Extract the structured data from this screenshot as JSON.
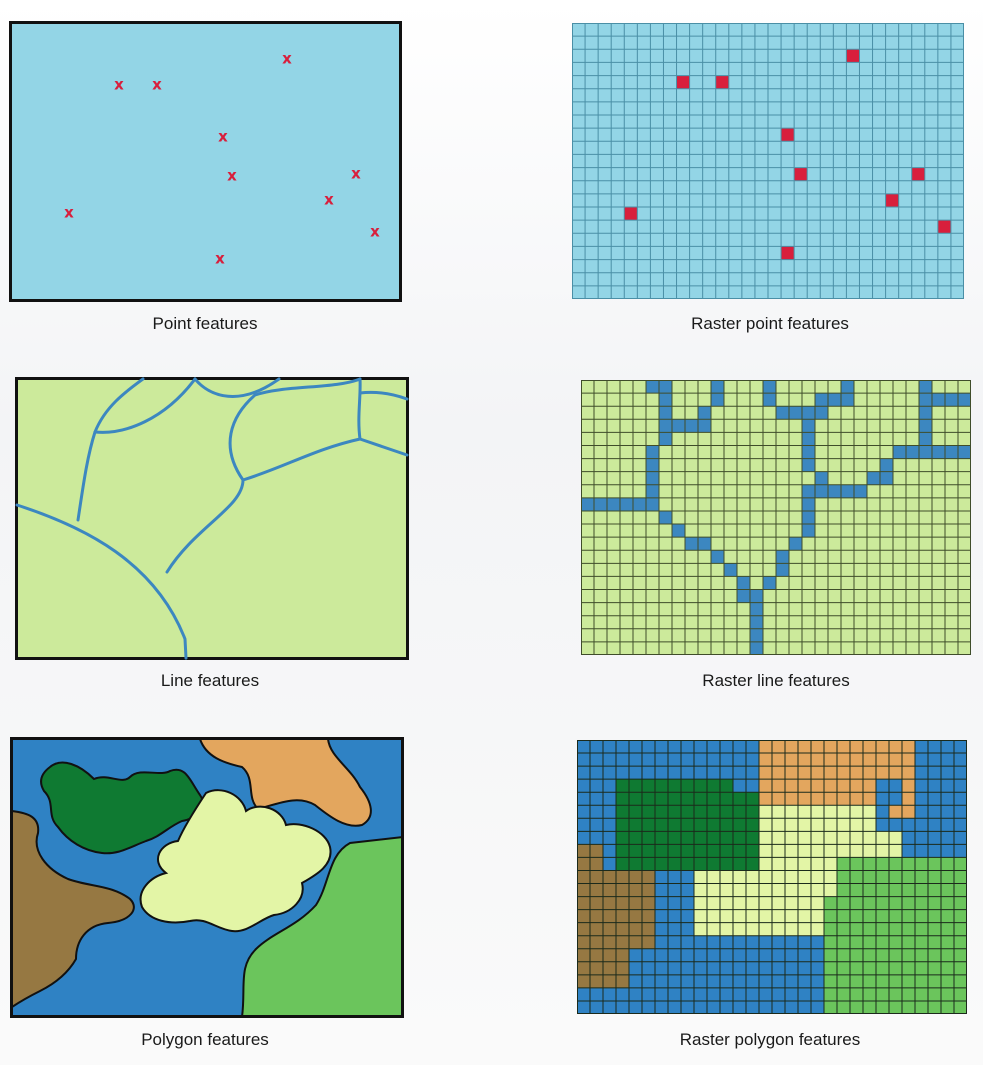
{
  "captions": {
    "point": "Point features",
    "raster_point": "Raster point features",
    "line": "Line features",
    "raster_line": "Raster line features",
    "polygon": "Polygon features",
    "raster_polygon": "Raster polygon features"
  },
  "point_marker": "x",
  "colors": {
    "point_bg": "#93d5e6",
    "point_grid_line": "#4a8fa6",
    "point_marker": "#d81f3c",
    "line_bg": "#ccea9b",
    "line_grid_line": "#3f4d2a",
    "line_stroke": "#3c87c0",
    "water_blue": "#2f82c4",
    "dark_green": "#0f7a32",
    "light_green": "#e3f5a6",
    "tan": "#e3a65e",
    "brown": "#967842",
    "mid_green": "#6bc55c"
  }
}
